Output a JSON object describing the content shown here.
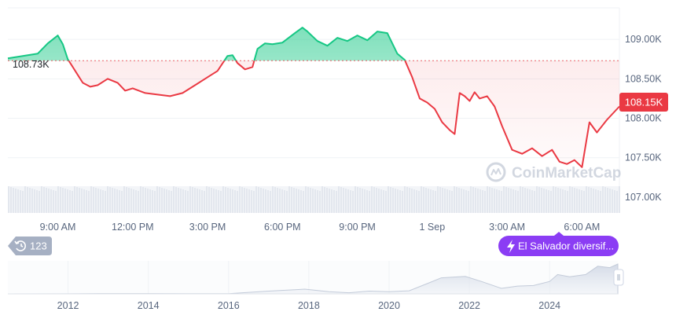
{
  "watermark": "CoinMarketCap",
  "event_badge": {
    "count": "123"
  },
  "news_pill": {
    "label": "El Salvador diversif..."
  },
  "colors": {
    "up": "#16c784",
    "down": "#ea3943",
    "grid": "#eff2f5",
    "axis_text": "#58667e",
    "pill_bg": "#8b3df4",
    "badge_bg": "#a6b0c3"
  },
  "chart_data": [
    {
      "type": "line",
      "title": "",
      "baseline": 108730,
      "baseline_label": "108.73K",
      "current_label": "108.15K",
      "ylim": [
        106800,
        109400
      ],
      "y_ticks": [
        107000,
        107500,
        108000,
        108500,
        109000
      ],
      "y_tick_labels": [
        "107.00K",
        "107.50K",
        "108.00K",
        "108.50K",
        "109.00K"
      ],
      "x_tick_labels": [
        "9:00 AM",
        "12:00 PM",
        "3:00 PM",
        "6:00 PM",
        "9:00 PM",
        "1 Sep",
        "3:00 AM",
        "6:00 AM"
      ],
      "x_tick_hours": [
        2,
        5,
        8,
        11,
        14,
        17,
        20,
        23
      ],
      "x_range_hours": [
        0,
        24.5
      ],
      "grid": true,
      "series": [
        {
          "x": [
            0,
            1.2,
            1.6,
            2.0,
            2.2,
            2.4,
            2.6,
            2.8,
            3.0,
            3.3,
            3.6,
            4.0,
            4.4,
            4.7,
            5.0,
            5.5,
            6.0,
            6.5,
            7.0,
            7.5,
            8.0,
            8.4,
            8.8,
            9.0,
            9.2,
            9.5,
            9.8,
            10.0,
            10.3,
            10.6,
            11.0,
            11.5,
            11.8,
            12.0,
            12.4,
            12.8,
            13.2,
            13.6,
            14.0,
            14.4,
            14.8,
            15.2,
            15.6,
            15.9,
            16.2,
            16.5,
            16.8,
            17.1,
            17.4,
            17.7,
            17.9,
            18.1,
            18.3,
            18.5,
            18.7,
            18.9,
            19.2,
            19.5,
            19.8,
            20.2,
            20.6,
            21.0,
            21.4,
            21.8,
            22.1,
            22.4,
            22.7,
            23.0,
            23.3,
            23.6,
            24.0,
            24.5
          ],
          "values": [
            108760,
            108820,
            108950,
            109050,
            108940,
            108750,
            108650,
            108550,
            108450,
            108400,
            108420,
            108500,
            108450,
            108350,
            108380,
            108320,
            108300,
            108280,
            108320,
            108420,
            108520,
            108600,
            108790,
            108800,
            108700,
            108620,
            108650,
            108880,
            108950,
            108940,
            108960,
            109080,
            109150,
            109100,
            108980,
            108920,
            109020,
            108980,
            109050,
            108990,
            109100,
            109080,
            108820,
            108740,
            108520,
            108250,
            108200,
            108120,
            107950,
            107850,
            107800,
            108320,
            108280,
            108220,
            108330,
            108250,
            108280,
            108150,
            107900,
            107600,
            107550,
            107620,
            107520,
            107600,
            107450,
            107420,
            107470,
            107380,
            107950,
            107820,
            107980,
            108150
          ]
        }
      ]
    },
    {
      "type": "area",
      "title": "",
      "x_tick_labels": [
        "2012",
        "2014",
        "2016",
        "2018",
        "2020",
        "2022",
        "2024"
      ],
      "x_tick_years": [
        2012,
        2014,
        2016,
        2018,
        2020,
        2022,
        2024
      ],
      "x_range_years": [
        2010.5,
        2025.7
      ],
      "series": [
        {
          "x": [
            2010.5,
            2012,
            2013,
            2014,
            2015,
            2016,
            2017,
            2017.9,
            2018.5,
            2019,
            2019.5,
            2020,
            2020.5,
            2021,
            2021.3,
            2021.9,
            2022.3,
            2022.8,
            2023.2,
            2023.6,
            2024,
            2024.2,
            2024.5,
            2024.9,
            2025.2,
            2025.5,
            2025.7
          ],
          "values": [
            0,
            0.2,
            1,
            1,
            0.5,
            0.8,
            10,
            17,
            8,
            4,
            10,
            8,
            11,
            40,
            58,
            63,
            45,
            20,
            28,
            30,
            45,
            70,
            62,
            70,
            100,
            95,
            108
          ]
        }
      ]
    }
  ]
}
